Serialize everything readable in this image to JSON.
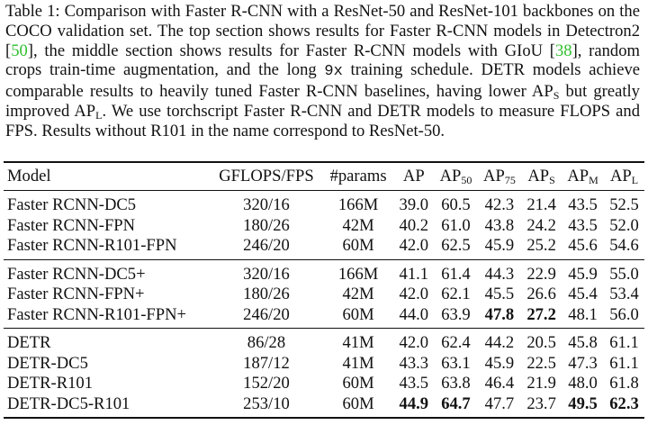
{
  "caption": {
    "part1": "Table 1: Comparison with Faster R-CNN with a ResNet-50 and ResNet-101 backbones on the COCO validation set. The top section shows results for Faster R-CNN models in Detectron2 [",
    "cite1": "50",
    "part2": "], the middle section shows results for Faster R-CNN models with GIoU [",
    "cite2": "38",
    "part3": "], random crops train-time augmentation, and the long ",
    "mono": "9x",
    "part4": " training schedule. DETR models achieve comparable results to heavily tuned Faster R-CNN baselines, having lower AP",
    "sub_s": "S",
    "part5": " but greatly improved AP",
    "sub_l": "L",
    "part6": ". We use torchscript Faster R-CNN and DETR models to measure FLOPS and FPS. Results without R101 in the name correspond to ResNet-50."
  },
  "table": {
    "headers": {
      "model": "Model",
      "gflops": "GFLOPS/FPS",
      "params": "#params",
      "ap": "AP",
      "ap50_base": "AP",
      "ap50_sub": "50",
      "ap75_base": "AP",
      "ap75_sub": "75",
      "aps_base": "AP",
      "aps_sub": "S",
      "apm_base": "AP",
      "apm_sub": "M",
      "apl_base": "AP",
      "apl_sub": "L"
    },
    "sections": [
      [
        {
          "model": "Faster RCNN-DC5",
          "gflops": "320/16",
          "params": "166M",
          "ap": "39.0",
          "ap50": "60.5",
          "ap75": "42.3",
          "aps": "21.4",
          "apm": "43.5",
          "apl": "52.5"
        },
        {
          "model": "Faster RCNN-FPN",
          "gflops": "180/26",
          "params": "42M",
          "ap": "40.2",
          "ap50": "61.0",
          "ap75": "43.8",
          "aps": "24.2",
          "apm": "43.5",
          "apl": "52.0"
        },
        {
          "model": "Faster RCNN-R101-FPN",
          "gflops": "246/20",
          "params": "60M",
          "ap": "42.0",
          "ap50": "62.5",
          "ap75": "45.9",
          "aps": "25.2",
          "apm": "45.6",
          "apl": "54.6"
        }
      ],
      [
        {
          "model": "Faster RCNN-DC5+",
          "gflops": "320/16",
          "params": "166M",
          "ap": "41.1",
          "ap50": "61.4",
          "ap75": "44.3",
          "aps": "22.9",
          "apm": "45.9",
          "apl": "55.0"
        },
        {
          "model": "Faster RCNN-FPN+",
          "gflops": "180/26",
          "params": "42M",
          "ap": "42.0",
          "ap50": "62.1",
          "ap75": "45.5",
          "aps": "26.6",
          "apm": "45.4",
          "apl": "53.4"
        },
        {
          "model": "Faster RCNN-R101-FPN+",
          "gflops": "246/20",
          "params": "60M",
          "ap": "44.0",
          "ap50": "63.9",
          "ap75": "47.8",
          "aps": "27.2",
          "apm": "48.1",
          "apl": "56.0",
          "bold": [
            "ap75",
            "aps"
          ]
        }
      ],
      [
        {
          "model": "DETR",
          "gflops": "86/28",
          "params": "41M",
          "ap": "42.0",
          "ap50": "62.4",
          "ap75": "44.2",
          "aps": "20.5",
          "apm": "45.8",
          "apl": "61.1"
        },
        {
          "model": "DETR-DC5",
          "gflops": "187/12",
          "params": "41M",
          "ap": "43.3",
          "ap50": "63.1",
          "ap75": "45.9",
          "aps": "22.5",
          "apm": "47.3",
          "apl": "61.1"
        },
        {
          "model": "DETR-R101",
          "gflops": "152/20",
          "params": "60M",
          "ap": "43.5",
          "ap50": "63.8",
          "ap75": "46.4",
          "aps": "21.9",
          "apm": "48.0",
          "apl": "61.8"
        },
        {
          "model": "DETR-DC5-R101",
          "gflops": "253/10",
          "params": "60M",
          "ap": "44.9",
          "ap50": "64.7",
          "ap75": "47.7",
          "aps": "23.7",
          "apm": "49.5",
          "apl": "62.3",
          "bold": [
            "ap",
            "ap50",
            "apm",
            "apl"
          ]
        }
      ]
    ]
  }
}
